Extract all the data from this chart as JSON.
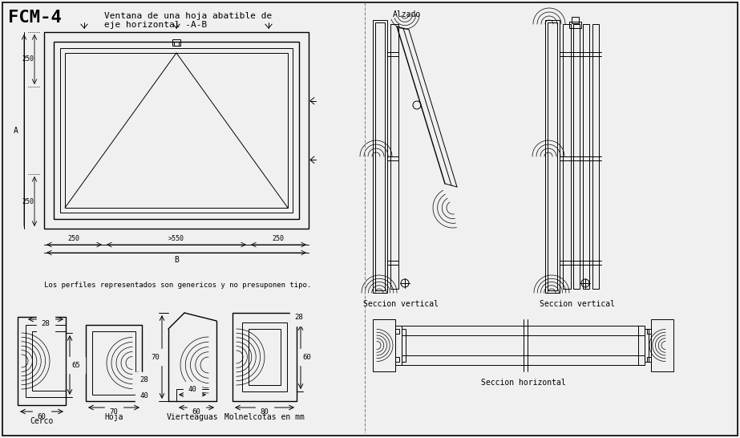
{
  "title": "FCM-4",
  "subtitle_line1": "Ventana de una hoja abatible de",
  "subtitle_line2": "eje horizontal -A-B",
  "bg_color": "#f0f0f0",
  "line_color": "#000000",
  "note_text": "Los perfiles representados son genericos y no presuponen tipo.",
  "labels_bottom": [
    "Cerco",
    "Hoja",
    "Vierteaguas",
    "Molnelcotas en mm"
  ],
  "labels_right": [
    "Seccion vertical",
    "Seccion vertical",
    "Seccion horizontal"
  ],
  "label_alzado": "Alzado"
}
